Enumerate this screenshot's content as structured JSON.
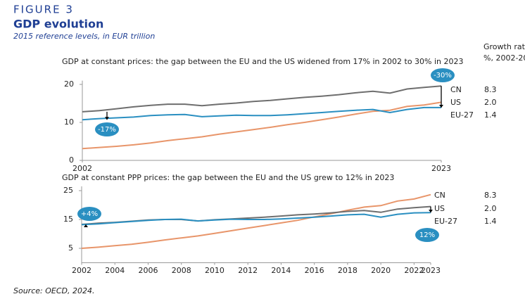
{
  "header": {
    "figure": "FIGURE 3",
    "title": "GDP evolution",
    "subtitle": "2015 reference levels, in EUR trillion",
    "growth_header": [
      "Growth rat",
      "%, 2002-20"
    ]
  },
  "footer": "Source: OECD, 2024.",
  "chart_data": [
    {
      "type": "line",
      "title": "GDP at constant prices: the gap between the EU and the US widened from 17% in 2002 to 30% in 2023",
      "x": [
        2002,
        2003,
        2004,
        2005,
        2006,
        2007,
        2008,
        2009,
        2010,
        2011,
        2012,
        2013,
        2014,
        2015,
        2016,
        2017,
        2018,
        2019,
        2020,
        2021,
        2022,
        2023
      ],
      "xlim": [
        2002,
        2023
      ],
      "xticks": [
        2002,
        2023
      ],
      "ylim": [
        0,
        21
      ],
      "yticks": [
        0,
        10,
        20
      ],
      "series": [
        {
          "name": "US",
          "color": "#6e6e6e",
          "growth": {
            "value": 2,
            "label": "2.0"
          },
          "values": [
            12.8,
            13.1,
            13.6,
            14.1,
            14.5,
            14.8,
            14.8,
            14.4,
            14.8,
            15.1,
            15.5,
            15.8,
            16.2,
            16.6,
            16.9,
            17.3,
            17.8,
            18.2,
            17.7,
            18.8,
            19.2,
            19.6
          ]
        },
        {
          "name": "CN",
          "color": "#e8956a",
          "growth": {
            "value": 8.3,
            "label": "8.3"
          },
          "values": [
            3.1,
            3.4,
            3.7,
            4.1,
            4.6,
            5.2,
            5.7,
            6.2,
            6.9,
            7.5,
            8.1,
            8.7,
            9.4,
            10.0,
            10.7,
            11.4,
            12.2,
            12.9,
            13.2,
            14.2,
            14.6,
            15.3
          ]
        },
        {
          "name": "EU-27",
          "color": "#2a8fc1",
          "growth": {
            "value": 1.4,
            "label": "1.4"
          },
          "values": [
            10.7,
            11.0,
            11.2,
            11.4,
            11.8,
            12.0,
            12.1,
            11.5,
            11.7,
            11.9,
            11.8,
            11.8,
            12.0,
            12.3,
            12.6,
            12.9,
            13.2,
            13.4,
            12.6,
            13.4,
            13.9,
            13.9
          ]
        }
      ],
      "annotations": [
        "-17%",
        "-30%"
      ]
    },
    {
      "type": "line",
      "title": "GDP at constant PPP prices: the gap between the EU and the US grew to 12% in 2023",
      "x": [
        2002,
        2003,
        2004,
        2005,
        2006,
        2007,
        2008,
        2009,
        2010,
        2011,
        2012,
        2013,
        2014,
        2015,
        2016,
        2017,
        2018,
        2019,
        2020,
        2021,
        2022,
        2023
      ],
      "xlim": [
        2002,
        2023
      ],
      "xticks": [
        2002,
        2004,
        2006,
        2008,
        2010,
        2012,
        2014,
        2016,
        2018,
        2020,
        2022,
        2023
      ],
      "ylim": [
        0,
        26.5
      ],
      "yticks": [
        5,
        15,
        25
      ],
      "series": [
        {
          "name": "CN",
          "color": "#e8956a",
          "growth": {
            "value": 8.3,
            "label": "8.3"
          },
          "values": [
            5.0,
            5.4,
            5.9,
            6.4,
            7.1,
            7.9,
            8.6,
            9.3,
            10.2,
            11.1,
            12.0,
            12.9,
            13.8,
            14.7,
            15.9,
            17.0,
            18.2,
            19.3,
            19.8,
            21.4,
            22.1,
            23.6
          ]
        },
        {
          "name": "US",
          "color": "#6e6e6e",
          "growth": {
            "value": 2,
            "label": "2.0"
          },
          "values": [
            13.3,
            13.7,
            14.0,
            14.4,
            14.8,
            15.0,
            15.0,
            14.5,
            14.9,
            15.2,
            15.5,
            15.8,
            16.2,
            16.6,
            16.9,
            17.3,
            17.8,
            18.1,
            17.5,
            18.6,
            19.1,
            19.5
          ]
        },
        {
          "name": "EU-27",
          "color": "#2a8fc1",
          "growth": {
            "value": 1.4,
            "label": "1.4"
          },
          "values": [
            13.2,
            13.5,
            13.9,
            14.3,
            14.7,
            15.0,
            15.1,
            14.5,
            14.8,
            15.1,
            15.0,
            15.0,
            15.2,
            15.5,
            15.8,
            16.2,
            16.6,
            16.8,
            15.8,
            16.8,
            17.3,
            17.4
          ]
        }
      ],
      "annotations": [
        "+4%",
        "12%"
      ]
    }
  ]
}
